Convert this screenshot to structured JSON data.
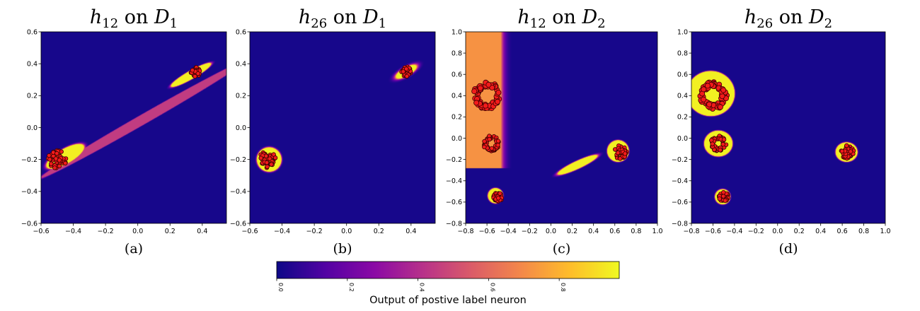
{
  "figure": {
    "colormap": "plasma",
    "colorbar": {
      "label": "Output of postive label neuron",
      "ticks": [
        "0.0",
        "0.2",
        "0.4",
        "0.6",
        "0.8"
      ],
      "tick_values": [
        0.0,
        0.2,
        0.4,
        0.6,
        0.8
      ],
      "range": [
        0,
        0.97
      ],
      "stops": [
        "#0d0887",
        "#5302a3",
        "#8b0aa5",
        "#b83289",
        "#db5c68",
        "#f48849",
        "#febd2a",
        "#f0f921"
      ]
    },
    "colors": {
      "background": "#10067a",
      "high": "#fbf3a4",
      "mid_pink": "#e3a2c8",
      "point_fill": "#f21b1b",
      "point_edge": "#3a0000"
    }
  },
  "chart_data": [
    {
      "type": "heatmap",
      "title": {
        "fn": "h",
        "sub": "12",
        "on": "on",
        "set": "D",
        "set_sub": "1"
      },
      "caption": "(a)",
      "xlim": [
        -0.6,
        0.55
      ],
      "ylim": [
        -0.6,
        0.6
      ],
      "xticks": [
        -0.6,
        -0.4,
        -0.2,
        0.0,
        0.2,
        0.4
      ],
      "yticks": [
        -0.6,
        -0.4,
        -0.2,
        0.0,
        0.2,
        0.4,
        0.6
      ],
      "xtick_labels": [
        "−0.6",
        "−0.4",
        "−0.2",
        "0.0",
        "0.2",
        "0.4"
      ],
      "ytick_labels": [
        "−0.6",
        "−0.4",
        "−0.2",
        "0.0",
        "0.2",
        "0.4",
        "0.6"
      ],
      "regions": [
        {
          "shape": "ellipse",
          "cx": 0.03,
          "cy": 0.05,
          "rx": 0.72,
          "ry": 0.03,
          "angle": 30,
          "value": 0.45,
          "blur": 0.03
        },
        {
          "shape": "ellipse",
          "cx": 0.33,
          "cy": 0.33,
          "rx": 0.14,
          "ry": 0.025,
          "angle": 30,
          "value": 0.95,
          "blur": 0.01
        },
        {
          "shape": "ellipse",
          "cx": -0.45,
          "cy": -0.18,
          "rx": 0.13,
          "ry": 0.045,
          "angle": 30,
          "value": 0.95,
          "blur": 0.01
        }
      ],
      "clusters": [
        {
          "cx": -0.5,
          "cy": -0.2,
          "r": 0.065,
          "hole": 0
        },
        {
          "cx": 0.36,
          "cy": 0.35,
          "r": 0.035,
          "hole": 0
        }
      ]
    },
    {
      "type": "heatmap",
      "title": {
        "fn": "h",
        "sub": "26",
        "on": "on",
        "set": "D",
        "set_sub": "1"
      },
      "caption": "(b)",
      "xlim": [
        -0.6,
        0.55
      ],
      "ylim": [
        -0.6,
        0.6
      ],
      "xticks": [
        -0.6,
        -0.4,
        -0.2,
        0.0,
        0.2,
        0.4
      ],
      "yticks": [
        -0.6,
        -0.4,
        -0.2,
        0.0,
        0.2,
        0.4,
        0.6
      ],
      "xtick_labels": [
        "−0.6",
        "−0.4",
        "−0.2",
        "0.0",
        "0.2",
        "0.4"
      ],
      "ytick_labels": [
        "−0.6",
        "−0.4",
        "−0.2",
        "0.0",
        "0.2",
        "0.4",
        "0.6"
      ],
      "regions": [
        {
          "shape": "ellipse",
          "cx": 0.37,
          "cy": 0.35,
          "rx": 0.07,
          "ry": 0.025,
          "angle": 30,
          "value": 0.95,
          "blur": 0.015
        },
        {
          "shape": "circle",
          "cx": -0.48,
          "cy": -0.2,
          "rx": 0.075,
          "ry": 0.075,
          "angle": 0,
          "value": 0.95,
          "blur": 0.004
        }
      ],
      "clusters": [
        {
          "cx": -0.49,
          "cy": -0.2,
          "r": 0.06,
          "hole": 0
        },
        {
          "cx": 0.37,
          "cy": 0.35,
          "r": 0.035,
          "hole": 0
        }
      ]
    },
    {
      "type": "heatmap",
      "title": {
        "fn": "h",
        "sub": "12",
        "on": "on",
        "set": "D",
        "set_sub": "2"
      },
      "caption": "(c)",
      "xlim": [
        -0.8,
        1.0
      ],
      "ylim": [
        -0.8,
        1.0
      ],
      "xticks": [
        -0.8,
        -0.6,
        -0.4,
        -0.2,
        0.0,
        0.2,
        0.4,
        0.6,
        0.8,
        1.0
      ],
      "yticks": [
        -0.8,
        -0.6,
        -0.4,
        -0.2,
        0.0,
        0.2,
        0.4,
        0.6,
        0.8,
        1.0
      ],
      "xtick_labels": [
        "−0.8",
        "−0.6",
        "−0.4",
        "−0.2",
        "0.0",
        "0.2",
        "0.4",
        "0.6",
        "0.8",
        "1.0"
      ],
      "ytick_labels": [
        "−0.8",
        "−0.6",
        "−0.4",
        "−0.2",
        "0.0",
        "0.2",
        "0.4",
        "0.6",
        "0.8",
        "1.0"
      ],
      "regions": [
        {
          "shape": "halfplane",
          "x_edge": -0.47,
          "y_below": -0.28,
          "value": 0.72,
          "blur": 0.03
        },
        {
          "shape": "ellipse",
          "cx": 0.25,
          "cy": -0.25,
          "rx": 0.2,
          "ry": 0.035,
          "angle": 25,
          "value": 0.95,
          "blur": 0.02
        },
        {
          "shape": "circle",
          "cx": 0.63,
          "cy": -0.12,
          "rx": 0.1,
          "ry": 0.1,
          "angle": 0,
          "value": 0.95,
          "blur": 0.004
        },
        {
          "shape": "circle",
          "cx": -0.52,
          "cy": -0.54,
          "rx": 0.07,
          "ry": 0.07,
          "angle": 0,
          "value": 0.95,
          "blur": 0.004
        }
      ],
      "clusters": [
        {
          "cx": -0.6,
          "cy": 0.4,
          "r": 0.14,
          "hole": 0.07
        },
        {
          "cx": -0.56,
          "cy": -0.05,
          "r": 0.08,
          "hole": 0.035
        },
        {
          "cx": 0.65,
          "cy": -0.13,
          "r": 0.07,
          "hole": 0
        },
        {
          "cx": -0.5,
          "cy": -0.55,
          "r": 0.05,
          "hole": 0
        }
      ]
    },
    {
      "type": "heatmap",
      "title": {
        "fn": "h",
        "sub": "26",
        "on": "on",
        "set": "D",
        "set_sub": "2"
      },
      "caption": "(d)",
      "xlim": [
        -0.8,
        1.0
      ],
      "ylim": [
        -0.8,
        1.0
      ],
      "xticks": [
        -0.8,
        -0.6,
        -0.4,
        -0.2,
        0.0,
        0.2,
        0.4,
        0.6,
        0.8,
        1.0
      ],
      "yticks": [
        -0.8,
        -0.6,
        -0.4,
        -0.2,
        0.0,
        0.2,
        0.4,
        0.6,
        0.8,
        1.0
      ],
      "xtick_labels": [
        "−0.8",
        "−0.6",
        "−0.4",
        "−0.2",
        "0.0",
        "0.2",
        "0.4",
        "0.6",
        "0.8",
        "1.0"
      ],
      "ytick_labels": [
        "−0.8",
        "−0.6",
        "−0.4",
        "−0.2",
        "0.0",
        "0.2",
        "0.4",
        "0.6",
        "0.8",
        "1.0"
      ],
      "regions": [
        {
          "shape": "circle",
          "cx": -0.62,
          "cy": 0.42,
          "rx": 0.22,
          "ry": 0.21,
          "angle": 0,
          "value": 0.95,
          "blur": 0.004
        },
        {
          "shape": "circle",
          "cx": -0.55,
          "cy": -0.05,
          "rx": 0.13,
          "ry": 0.12,
          "angle": 0,
          "value": 0.95,
          "blur": 0.004
        },
        {
          "shape": "circle",
          "cx": 0.64,
          "cy": -0.13,
          "rx": 0.1,
          "ry": 0.09,
          "angle": 0,
          "value": 0.95,
          "blur": 0.004
        },
        {
          "shape": "circle",
          "cx": -0.51,
          "cy": -0.55,
          "rx": 0.07,
          "ry": 0.07,
          "angle": 0,
          "value": 0.95,
          "blur": 0.004
        }
      ],
      "clusters": [
        {
          "cx": -0.6,
          "cy": 0.4,
          "r": 0.14,
          "hole": 0.07
        },
        {
          "cx": -0.55,
          "cy": -0.05,
          "r": 0.08,
          "hole": 0.035
        },
        {
          "cx": 0.65,
          "cy": -0.13,
          "r": 0.07,
          "hole": 0
        },
        {
          "cx": -0.5,
          "cy": -0.55,
          "r": 0.05,
          "hole": 0
        }
      ]
    }
  ]
}
